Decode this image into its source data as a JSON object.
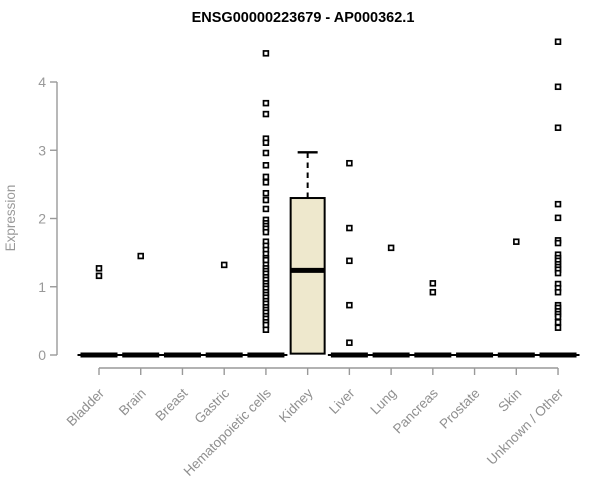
{
  "page": {
    "background": "#ffffff"
  },
  "chart_data": {
    "type": "boxplot",
    "title": "ENSG00000223679 - AP000362.1",
    "ylabel": "Expression",
    "xlabel": "",
    "ylim": [
      0,
      4
    ],
    "yticks": [
      0,
      1,
      2,
      3,
      4
    ],
    "grid": false,
    "legend": "none",
    "categories": [
      "Bladder",
      "Brain",
      "Breast",
      "Gastric",
      "Hematopoietic cells",
      "Kidney",
      "Liver",
      "Lung",
      "Pancreas",
      "Prostate",
      "Skin",
      "Unknown / Other"
    ],
    "groups": [
      {
        "label": "Bladder",
        "zero_bar": true,
        "points": [
          1.27,
          1.16
        ]
      },
      {
        "label": "Brain",
        "zero_bar": true,
        "points": [
          1.45
        ]
      },
      {
        "label": "Breast",
        "zero_bar": true,
        "points": []
      },
      {
        "label": "Gastric",
        "zero_bar": true,
        "points": [
          1.32
        ]
      },
      {
        "label": "Hematopoietic cells",
        "zero_bar": true,
        "points": [
          4.42,
          3.69,
          3.53,
          3.17,
          3.11,
          2.96,
          2.78,
          2.61,
          2.53,
          2.37,
          2.27,
          2.14,
          1.98,
          1.93,
          1.89,
          1.85,
          1.8,
          1.66,
          1.6,
          1.54,
          1.48,
          1.42,
          1.39,
          1.32,
          1.27,
          1.23,
          1.19,
          1.14,
          1.1,
          1.05,
          1.01,
          0.97,
          0.92,
          0.88,
          0.84,
          0.79,
          0.75,
          0.7,
          0.66,
          0.62,
          0.57,
          0.53,
          0.48,
          0.44,
          0.37
        ]
      },
      {
        "label": "Kidney",
        "zero_bar": false,
        "points": [],
        "box": {
          "whisker_high": 2.97,
          "q3": 2.3,
          "median": 1.24,
          "q1": 0.02,
          "whisker_low": 0
        }
      },
      {
        "label": "Liver",
        "zero_bar": true,
        "points": [
          2.81,
          1.86,
          1.38,
          0.73,
          0.18
        ]
      },
      {
        "label": "Lung",
        "zero_bar": true,
        "points": [
          1.57
        ]
      },
      {
        "label": "Pancreas",
        "zero_bar": true,
        "points": [
          1.05,
          0.92
        ]
      },
      {
        "label": "Prostate",
        "zero_bar": true,
        "points": []
      },
      {
        "label": "Skin",
        "zero_bar": true,
        "points": [
          1.66
        ]
      },
      {
        "label": "Unknown / Other",
        "zero_bar": true,
        "points": [
          4.59,
          3.93,
          3.33,
          2.21,
          2.01,
          1.68,
          1.64,
          1.47,
          1.42,
          1.38,
          1.33,
          1.29,
          1.25,
          1.2,
          1.04,
          0.98,
          0.92,
          0.73,
          0.69,
          0.64,
          0.6,
          0.56,
          0.48,
          0.4
        ]
      }
    ],
    "colors": {
      "box_fill": "#EEE8CD",
      "box_border": "#000000",
      "median": "#000000",
      "point": "#000000",
      "point_fill": "#ffffff",
      "zero_bar": "#000000",
      "axis": "#999999",
      "tick_label": "#999999",
      "title": "#000000"
    }
  }
}
